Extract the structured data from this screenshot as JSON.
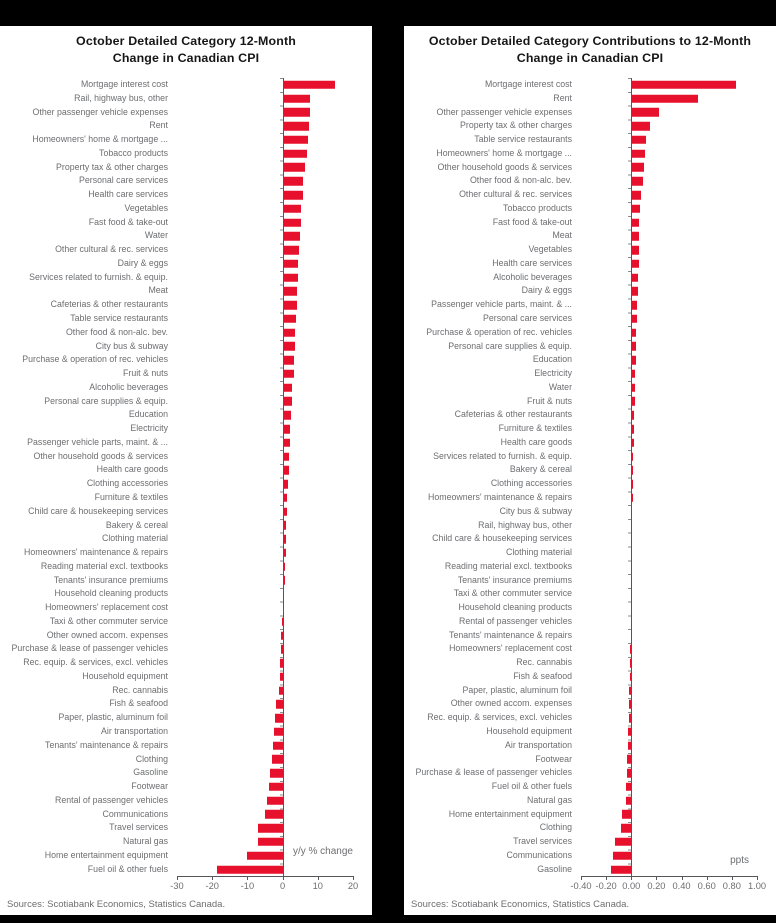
{
  "colors": {
    "bar_red": "#e8112d",
    "label_gray": "#6d6e71",
    "title_black": "#161616",
    "page_bg": "#000000",
    "panel_bg": "#ffffff"
  },
  "chart_data": [
    {
      "type": "bar",
      "orientation": "horizontal",
      "title_line1": "October Detailed Category 12-Month",
      "title_line2": "Change in Canadian CPI",
      "unit_label": "y/y % change",
      "source": "Sources: Scotiabank Economics, Statistics Canada.",
      "xlim": [
        -30,
        20
      ],
      "xticks": [
        {
          "v": -30,
          "label": "-30"
        },
        {
          "v": -20,
          "label": "-20"
        },
        {
          "v": -10,
          "label": "-10"
        },
        {
          "v": 0,
          "label": "0"
        },
        {
          "v": 10,
          "label": "10"
        },
        {
          "v": 20,
          "label": "20"
        }
      ],
      "categories": [
        "Mortgage interest cost",
        "Rail, highway bus, other",
        "Other passenger vehicle expenses",
        "Rent",
        "Homeowners' home & mortgage ...",
        "Tobacco products",
        "Property tax & other charges",
        "Personal care services",
        "Health care services",
        "Vegetables",
        "Fast food & take-out",
        "Water",
        "Other cultural & rec. services",
        "Dairy & eggs",
        "Services related to furnish. & equip.",
        "Meat",
        "Cafeterias & other restaurants",
        "Table service restaurants",
        "Other food & non-alc. bev.",
        "City bus & subway",
        "Purchase & operation of rec. vehicles",
        "Fruit & nuts",
        "Alcoholic beverages",
        "Personal care supplies & equip.",
        "Education",
        "Electricity",
        "Passenger vehicle parts, maint. & ...",
        "Other household goods & services",
        "Health care goods",
        "Clothing accessories",
        "Furniture & textiles",
        "Child care & housekeeping services",
        "Bakery & cereal",
        "Clothing material",
        "Homeowners' maintenance & repairs",
        "Reading material excl. textbooks",
        "Tenants' insurance premiums",
        "Household cleaning products",
        "Homeowners' replacement cost",
        "Taxi & other commuter service",
        "Other owned accom. expenses",
        "Purchase & lease of passenger vehicles",
        "Rec. equip. & services, excl. vehicles",
        "Household equipment",
        "Rec. cannabis",
        "Fish & seafood",
        "Paper, plastic, aluminum foil",
        "Air transportation",
        "Tenants' maintenance & repairs",
        "Clothing",
        "Gasoline",
        "Footwear",
        "Rental of passenger vehicles",
        "Communications",
        "Travel services",
        "Natural gas",
        "Home entertainment equipment",
        "Fuel oil & other fuels"
      ],
      "values": [
        14.8,
        7.9,
        7.7,
        7.6,
        7.2,
        6.8,
        6.4,
        5.8,
        5.7,
        5.3,
        5.2,
        5.0,
        4.8,
        4.5,
        4.3,
        4.2,
        4.0,
        3.8,
        3.6,
        3.4,
        3.2,
        3.1,
        2.8,
        2.6,
        2.3,
        2.2,
        2.0,
        1.9,
        1.7,
        1.5,
        1.3,
        1.2,
        1.1,
        1.0,
        0.9,
        0.8,
        0.7,
        0.5,
        0.3,
        -0.3,
        -0.4,
        -0.5,
        -0.6,
        -0.8,
        -1.1,
        -1.9,
        -2.1,
        -2.4,
        -2.7,
        -2.9,
        -3.6,
        -4.0,
        -4.4,
        -5.1,
        -6.9,
        -7.1,
        -10.2,
        -18.6
      ]
    },
    {
      "type": "bar",
      "orientation": "horizontal",
      "title_line1": "October Detailed Category Contributions to 12-Month",
      "title_line2": "Change in Canadian CPI",
      "unit_label": "ppts",
      "source": "Sources: Scotiabank Economics, Statistics Canada.",
      "xlim": [
        -0.4,
        1.0
      ],
      "xticks": [
        {
          "v": -0.4,
          "label": "-0.40"
        },
        {
          "v": -0.2,
          "label": "-0.20"
        },
        {
          "v": 0.0,
          "label": "0.00"
        },
        {
          "v": 0.2,
          "label": "0.20"
        },
        {
          "v": 0.4,
          "label": "0.40"
        },
        {
          "v": 0.6,
          "label": "0.60"
        },
        {
          "v": 0.8,
          "label": "0.80"
        },
        {
          "v": 1.0,
          "label": "1.00"
        }
      ],
      "categories": [
        "Mortgage interest cost",
        "Rent",
        "Other passenger vehicle expenses",
        "Property tax & other charges",
        "Table service restaurants",
        "Homeowners' home & mortgage ...",
        "Other household goods & services",
        "Other food & non-alc. bev.",
        "Other cultural & rec. services",
        "Tobacco products",
        "Fast food & take-out",
        "Meat",
        "Vegetables",
        "Health care services",
        "Alcoholic beverages",
        "Dairy & eggs",
        "Passenger vehicle parts, maint. & ...",
        "Personal care services",
        "Purchase & operation of rec. vehicles",
        "Personal care supplies & equip.",
        "Education",
        "Electricity",
        "Water",
        "Fruit & nuts",
        "Cafeterias & other restaurants",
        "Furniture & textiles",
        "Health care goods",
        "Services related to furnish. & equip.",
        "Bakery & cereal",
        "Clothing accessories",
        "Homeowners' maintenance & repairs",
        "City bus & subway",
        "Rail, highway bus, other",
        "Child care & housekeeping services",
        "Clothing material",
        "Reading material excl. textbooks",
        "Tenants' insurance premiums",
        "Taxi & other commuter service",
        "Household cleaning products",
        "Rental of passenger vehicles",
        "Tenants' maintenance & repairs",
        "Homeowners' replacement cost",
        "Rec. cannabis",
        "Fish & seafood",
        "Paper, plastic, aluminum foil",
        "Other owned accom. expenses",
        "Rec. equip. & services, excl. vehicles",
        "Household equipment",
        "Air transportation",
        "Footwear",
        "Purchase & lease of passenger vehicles",
        "Fuel oil & other fuels",
        "Natural gas",
        "Home entertainment equipment",
        "Clothing",
        "Travel services",
        "Communications",
        "Gasoline"
      ],
      "values": [
        0.83,
        0.53,
        0.22,
        0.15,
        0.12,
        0.11,
        0.1,
        0.09,
        0.08,
        0.07,
        0.065,
        0.062,
        0.06,
        0.058,
        0.055,
        0.05,
        0.047,
        0.044,
        0.041,
        0.037,
        0.034,
        0.031,
        0.029,
        0.026,
        0.024,
        0.021,
        0.019,
        0.017,
        0.015,
        0.013,
        0.011,
        0.009,
        0.008,
        0.007,
        0.005,
        0.004,
        0.003,
        0.002,
        0.001,
        -0.004,
        -0.006,
        -0.008,
        -0.01,
        -0.012,
        -0.015,
        -0.018,
        -0.02,
        -0.023,
        -0.03,
        -0.035,
        -0.038,
        -0.042,
        -0.045,
        -0.073,
        -0.084,
        -0.126,
        -0.145,
        -0.163
      ]
    }
  ]
}
